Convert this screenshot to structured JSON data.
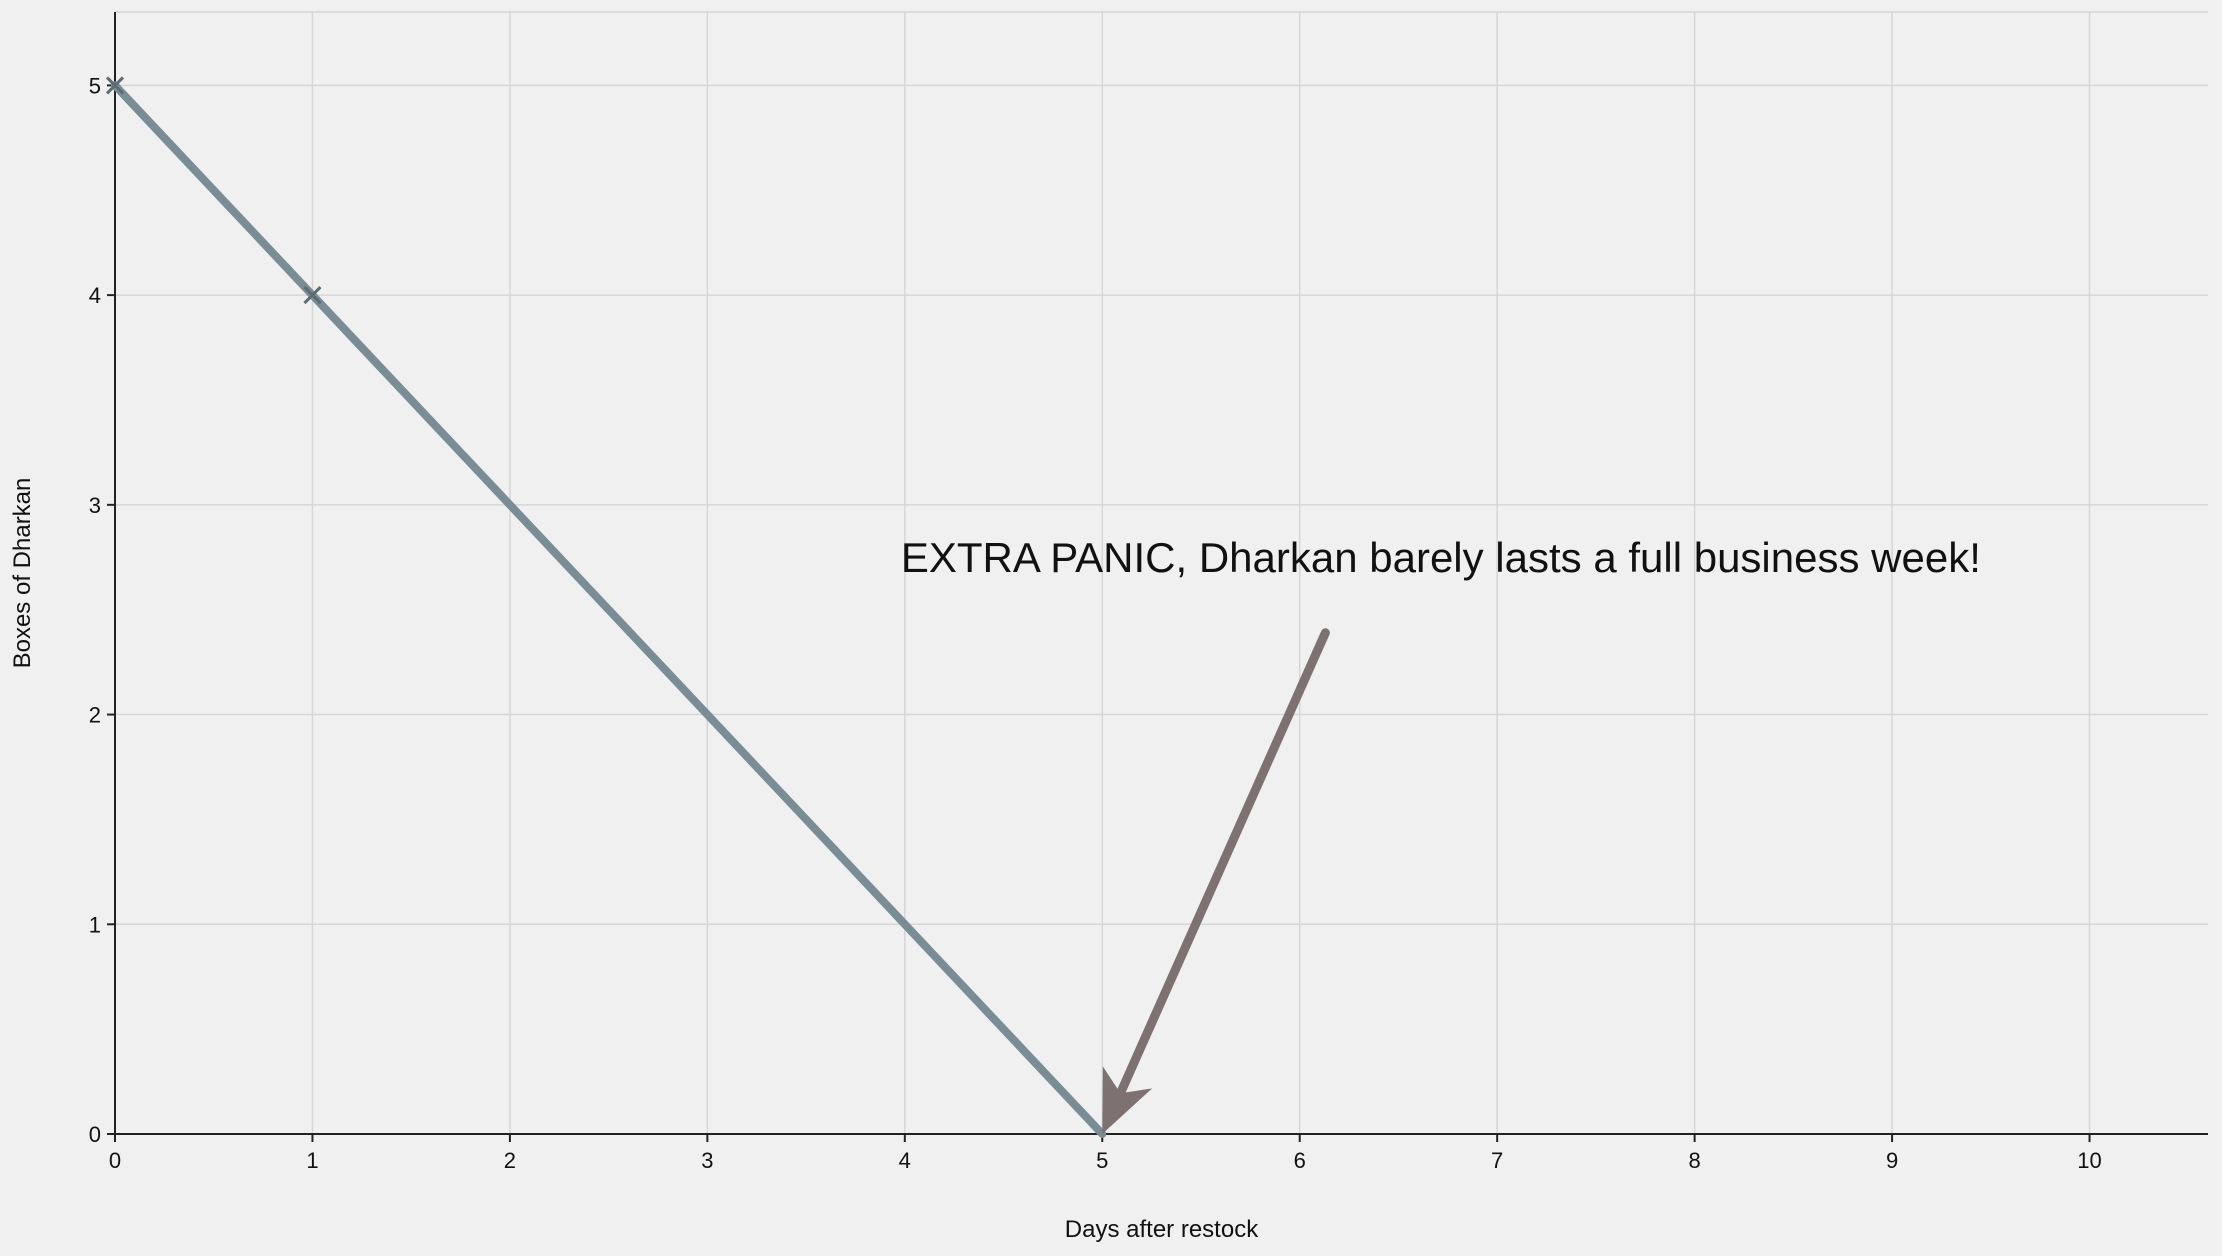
{
  "chart_data": {
    "type": "line",
    "x_ticks": [
      0,
      1,
      2,
      3,
      4,
      5,
      6,
      7,
      8,
      9,
      10
    ],
    "y_ticks": [
      0,
      1,
      2,
      3,
      4,
      5
    ],
    "xlim": [
      0,
      10.6
    ],
    "ylim": [
      0,
      5.35
    ],
    "xlabel": "Days after restock",
    "ylabel": "Boxes of Dharkan",
    "grid": true,
    "series": [
      {
        "color": "#7a8c96",
        "x": [
          0,
          5
        ],
        "y": [
          5,
          0
        ]
      }
    ],
    "markers": [
      {
        "x": 0,
        "y": 5,
        "symbol": "x"
      },
      {
        "x": 1,
        "y": 4,
        "symbol": "x"
      }
    ],
    "annotation": {
      "text": "EXTRA PANIC, Dharkan barely lasts a full business week!",
      "text_x": 3.98,
      "text_y": 2.68,
      "arrow_from": {
        "x": 6.13,
        "y": 2.39
      },
      "arrow_to": {
        "x": 5.0,
        "y": 0.0
      },
      "arrow_color": "#7d7172"
    },
    "colors": {
      "background": "#f0f0f0",
      "grid": "#d6d6d6",
      "axis": "#222222",
      "line": "#7a8c96",
      "marker": "#5d6b72",
      "arrow": "#7d7172"
    }
  }
}
